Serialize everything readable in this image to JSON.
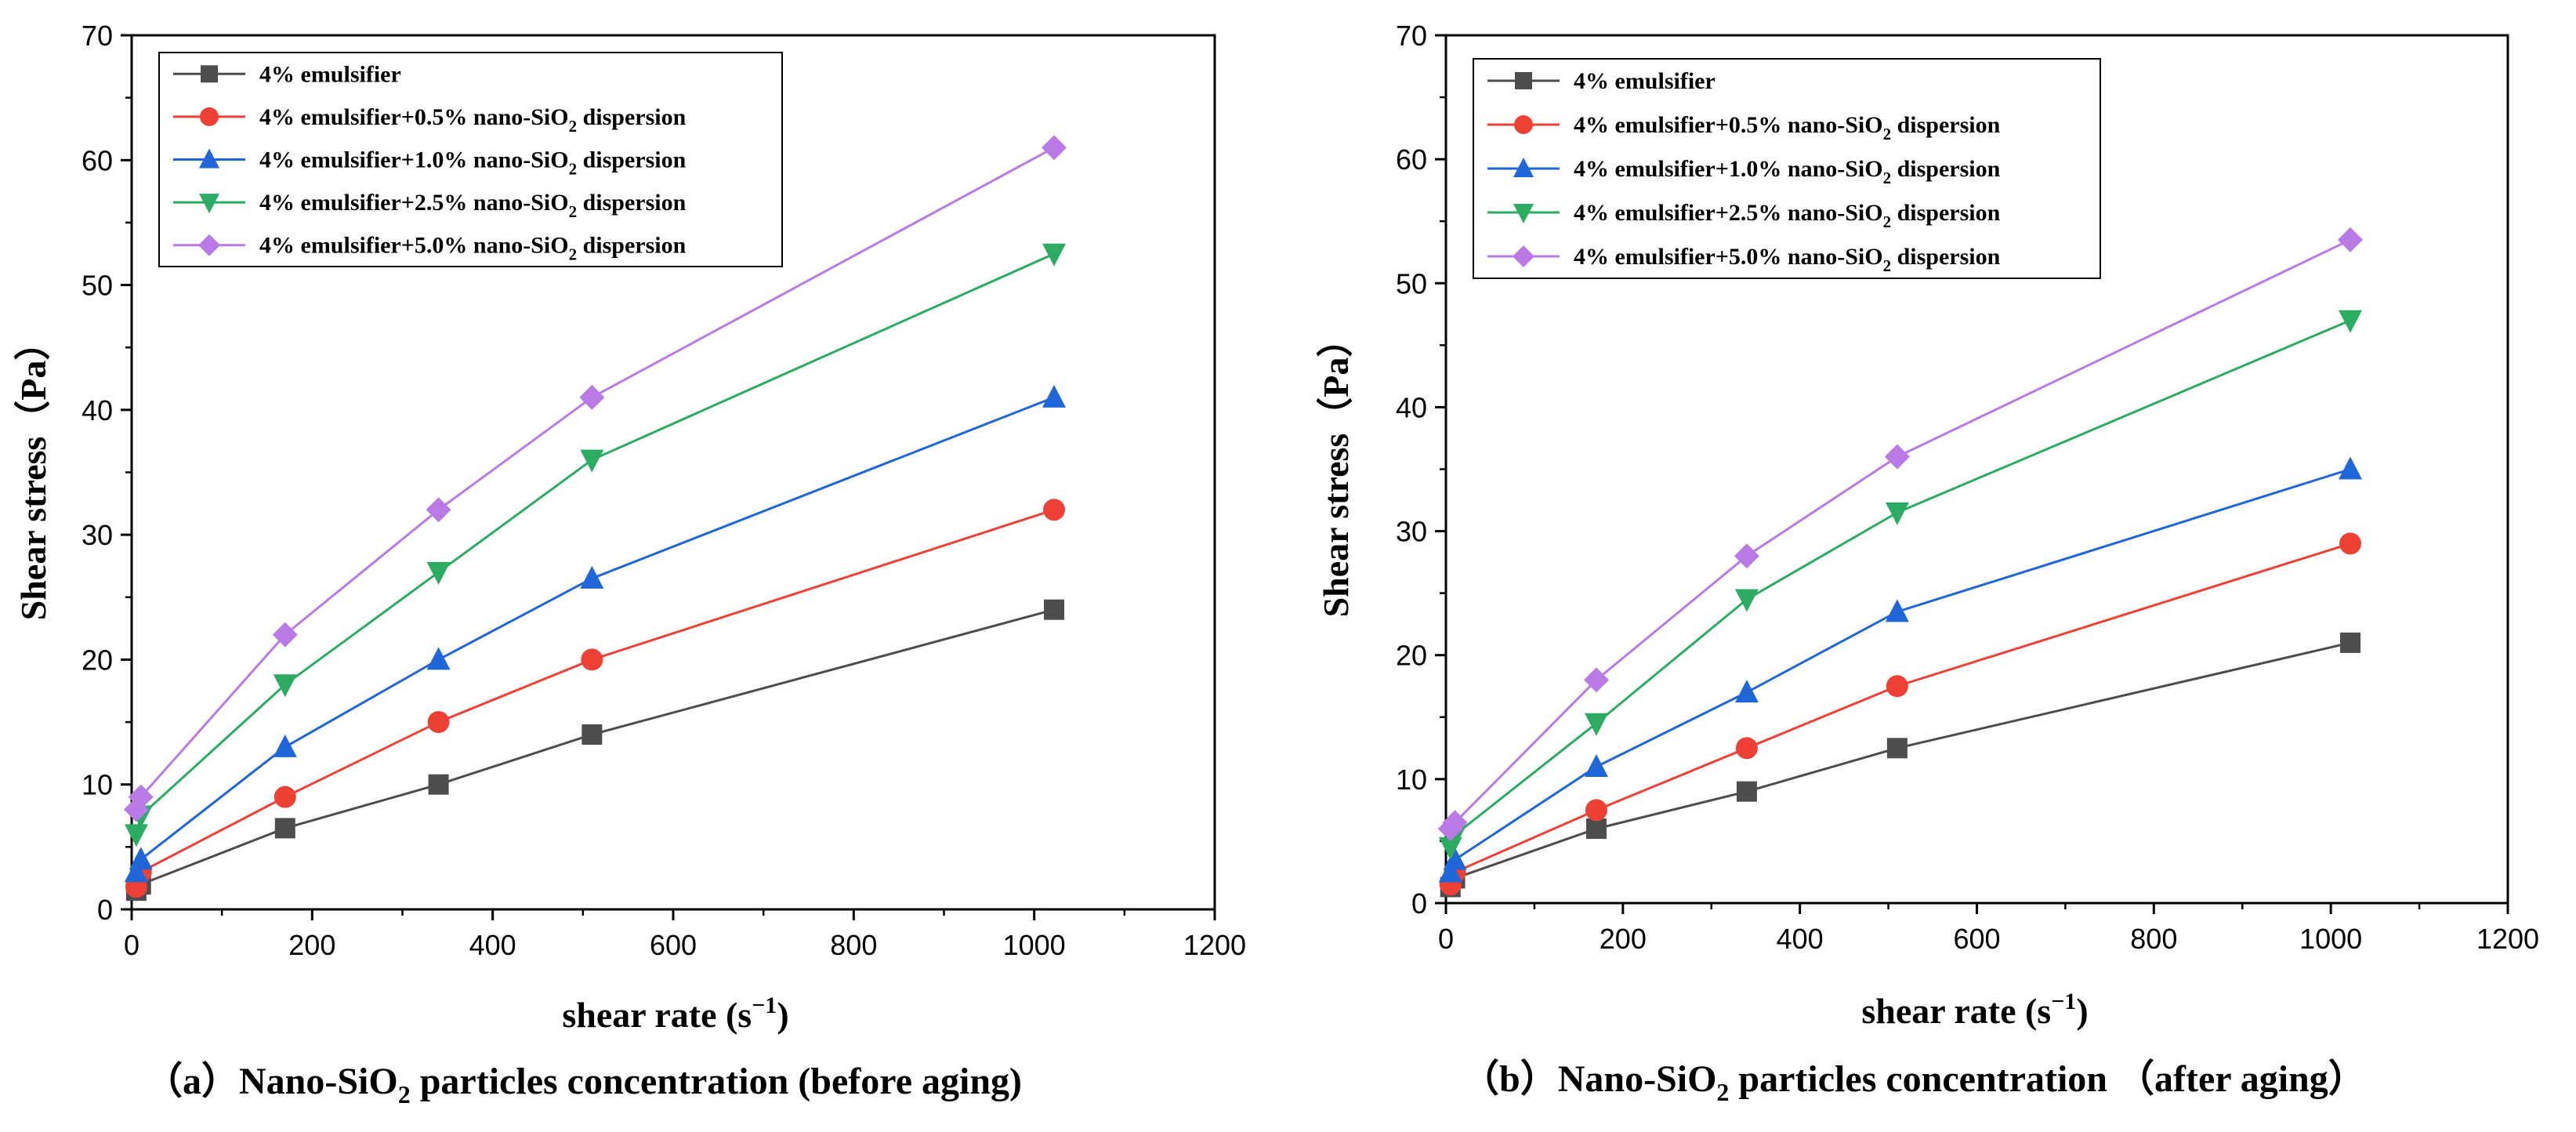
{
  "colors": {
    "series": [
      "#4d4d4d",
      "#ef4036",
      "#1f66d8",
      "#2cab62",
      "#b97ae6"
    ]
  },
  "chart_data": [
    {
      "type": "line",
      "panel": "a",
      "caption": {
        "prefix": "（a）",
        "text_before": "Nano-SiO",
        "sub": "2",
        "text_after": " particles concentration (before aging)"
      },
      "xlabel": {
        "main": "shear rate (s",
        "sup": "−1",
        "close": ")"
      },
      "ylabel": "Shear stress（Pa）",
      "xlim": [
        0,
        1200
      ],
      "ylim": [
        0,
        70
      ],
      "xticks": [
        "0",
        "200",
        "400",
        "600",
        "800",
        "1000",
        "1200"
      ],
      "yticks": [
        "0",
        "10",
        "20",
        "30",
        "40",
        "50",
        "60",
        "70"
      ],
      "legend_position": "top-left",
      "x": [
        5.1,
        10.2,
        170,
        340,
        510,
        1022
      ],
      "series": [
        {
          "name": "4% emulsifier",
          "marker": "square",
          "values": [
            1.5,
            2,
            6.5,
            10,
            14,
            24
          ]
        },
        {
          "name": "4% emulsifier+0.5% nano-SiO2 dispersion",
          "marker": "circle",
          "values": [
            1.8,
            3,
            9,
            15,
            20,
            32
          ]
        },
        {
          "name": "4% emulsifier+1.0% nano-SiO2 dispersion",
          "marker": "triangle-up",
          "values": [
            3,
            4,
            13,
            20,
            26.5,
            41
          ]
        },
        {
          "name": "4% emulsifier+2.5% nano-SiO2 dispersion",
          "marker": "triangle-down",
          "values": [
            6,
            7.5,
            18,
            27,
            36,
            52.5
          ]
        },
        {
          "name": "4% emulsifier+5.0% nano-SiO2 dispersion",
          "marker": "diamond",
          "values": [
            8,
            9,
            22,
            32,
            41,
            61
          ]
        }
      ]
    },
    {
      "type": "line",
      "panel": "b",
      "caption": {
        "prefix": "（b）",
        "text_before": "Nano-SiO",
        "sub": "2",
        "text_after": " particles concentration （after aging）"
      },
      "xlabel": {
        "main": "shear rate (s",
        "sup": "−1",
        "close": ")"
      },
      "ylabel": "Shear stress（Pa）",
      "xlim": [
        0,
        1200
      ],
      "ylim": [
        0,
        70
      ],
      "xticks": [
        "0",
        "200",
        "400",
        "600",
        "800",
        "1000",
        "1200"
      ],
      "yticks": [
        "0",
        "10",
        "20",
        "30",
        "40",
        "50",
        "60",
        "70"
      ],
      "legend_position": "top-left",
      "x": [
        5.1,
        10.2,
        170,
        340,
        510,
        1022
      ],
      "series": [
        {
          "name": "4% emulsifier",
          "marker": "square",
          "values": [
            1.3,
            2,
            6,
            9,
            12.5,
            21
          ]
        },
        {
          "name": "4% emulsifier+0.5% nano-SiO2 dispersion",
          "marker": "circle",
          "values": [
            1.5,
            2.5,
            7.5,
            12.5,
            17.5,
            29
          ]
        },
        {
          "name": "4% emulsifier+1.0% nano-SiO2 dispersion",
          "marker": "triangle-up",
          "values": [
            2.5,
            3.5,
            11,
            17,
            23.5,
            35
          ]
        },
        {
          "name": "4% emulsifier+2.5% nano-SiO2 dispersion",
          "marker": "triangle-down",
          "values": [
            4.5,
            5.5,
            14.5,
            24.5,
            31.5,
            47
          ]
        },
        {
          "name": "4% emulsifier+5.0% nano-SiO2 dispersion",
          "marker": "diamond",
          "values": [
            6,
            6.5,
            18,
            28,
            36,
            53.5
          ]
        }
      ]
    }
  ]
}
